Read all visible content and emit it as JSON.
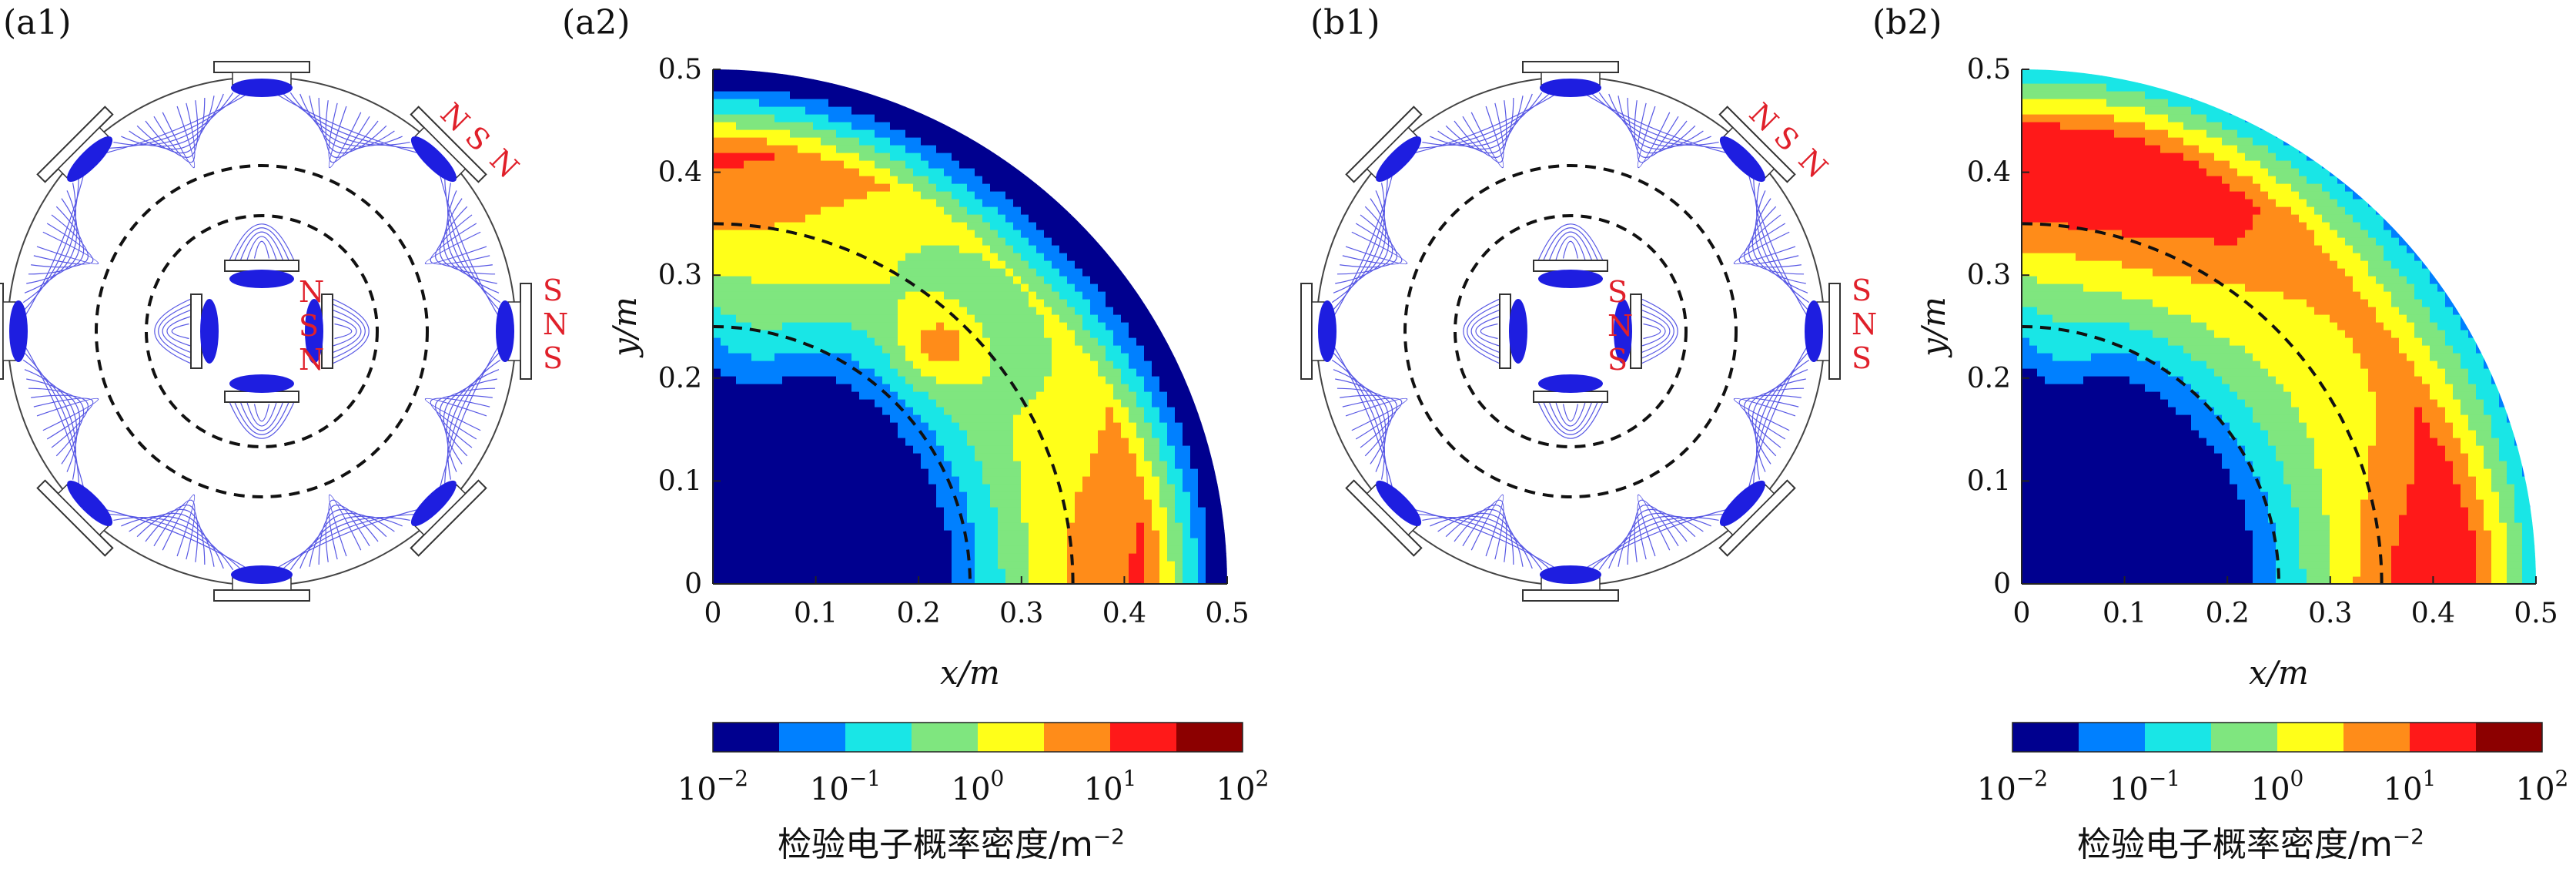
{
  "panels": {
    "a1": "(a1)",
    "a2": "(a2)",
    "b1": "(b1)",
    "b2": "(b2)"
  },
  "magnet_labels": {
    "a_outer_top": [
      "N",
      "S",
      "N"
    ],
    "a_outer_right": [
      "S",
      "N",
      "S"
    ],
    "a_inner": [
      "N",
      "S",
      "N"
    ],
    "b_outer_top": [
      "N",
      "S",
      "N"
    ],
    "b_outer_right": [
      "S",
      "N",
      "S"
    ],
    "b_inner": [
      "S",
      "N",
      "S"
    ]
  },
  "colors": {
    "field_lines": "#3a3ae0",
    "magnet_label": "#e0202a",
    "dashed": "#111111",
    "levels": [
      "#00008f",
      "#0080ff",
      "#19e6e6",
      "#7fe67f",
      "#ffff19",
      "#ff8c19",
      "#ff1919",
      "#8c0000"
    ]
  },
  "colorbar": {
    "ticks": [
      "10^-2",
      "10^-1",
      "10^0",
      "10^1",
      "10^2"
    ],
    "tick_base": "10",
    "tick_exps": [
      "−2",
      "−1",
      "0",
      "1",
      "2"
    ],
    "label_main": "检验电子概率密度/m",
    "label_exp": "−2"
  },
  "chart_data": [
    {
      "type": "heatmap",
      "panel": "(a2)",
      "xlabel": "x/m",
      "ylabel": "y/m",
      "xlim": [
        0,
        0.5
      ],
      "ylim": [
        0,
        0.5
      ],
      "xticks": [
        "0",
        "0.1",
        "0.2",
        "0.3",
        "0.4",
        "0.5"
      ],
      "yticks": [
        "0",
        "0.1",
        "0.2",
        "0.3",
        "0.4",
        "0.5"
      ],
      "colorscale": "log",
      "zlim": [
        0.01,
        100
      ],
      "levels": [
        0.01,
        0.0316,
        0.1,
        0.316,
        1,
        3.16,
        10,
        31.6,
        100
      ],
      "dashed_circles_radius": [
        0.25,
        0.35
      ],
      "domain": "quarter disk radius 0.5 m"
    },
    {
      "type": "heatmap",
      "panel": "(b2)",
      "xlabel": "x/m",
      "ylabel": "y/m",
      "xlim": [
        0,
        0.5
      ],
      "ylim": [
        0,
        0.5
      ],
      "xticks": [
        "0",
        "0.1",
        "0.2",
        "0.3",
        "0.4",
        "0.5"
      ],
      "yticks": [
        "0",
        "0.1",
        "0.2",
        "0.3",
        "0.4",
        "0.5"
      ],
      "colorscale": "log",
      "zlim": [
        0.01,
        100
      ],
      "levels": [
        0.01,
        0.0316,
        0.1,
        0.316,
        1,
        3.16,
        10,
        31.6,
        100
      ],
      "dashed_circles_radius": [
        0.25,
        0.35
      ],
      "domain": "quarter disk radius 0.5 m"
    }
  ]
}
